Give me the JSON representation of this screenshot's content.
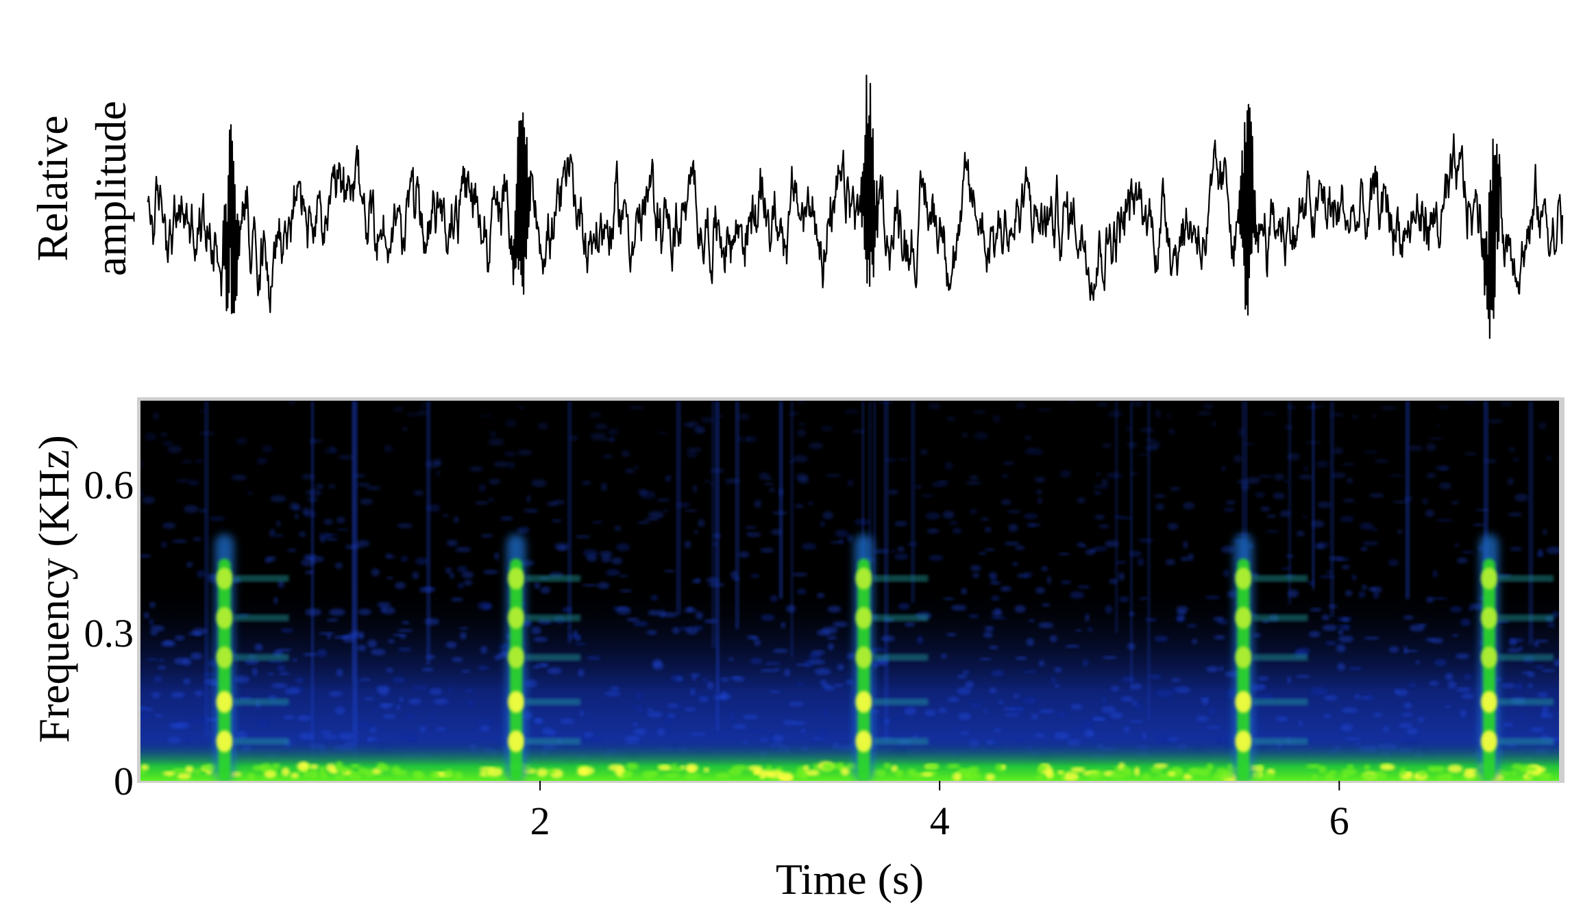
{
  "chart_data": [
    {
      "type": "line",
      "panel": "waveform",
      "ylabel_lines": [
        "Relative",
        "amplitude"
      ],
      "xlim": [
        0,
        7.1
      ],
      "ylim": [
        -1,
        1
      ],
      "baseline_noise": 0.16,
      "bursts": [
        {
          "t": 0.42,
          "amplitude": 0.75
        },
        {
          "t": 1.88,
          "amplitude": 0.77
        },
        {
          "t": 3.62,
          "amplitude": 0.83
        },
        {
          "t": 5.52,
          "amplitude": 0.8
        },
        {
          "t": 6.75,
          "amplitude": 0.77
        }
      ],
      "line_color": "#000000"
    },
    {
      "type": "heatmap",
      "panel": "spectrogram",
      "xlabel": "Time (s)",
      "ylabel": "Frequency (KHz)",
      "xlim": [
        0,
        7.1
      ],
      "ylim": [
        0,
        0.77
      ],
      "x_ticks": [
        2,
        4,
        6
      ],
      "x_tick_labels": [
        "2",
        "4",
        "6"
      ],
      "y_ticks": [
        0,
        0.3,
        0.6
      ],
      "y_tick_labels": [
        "0",
        "0.3",
        "0.6"
      ],
      "colormap": [
        "#000000",
        "#0a1a6e",
        "#1a3fc8",
        "#22a0a0",
        "#2fe01e",
        "#ffff40"
      ],
      "calls": [
        {
          "t": 0.42,
          "top_khz": 0.5,
          "harmonics_khz": [
            0.08,
            0.16,
            0.25,
            0.33,
            0.41
          ]
        },
        {
          "t": 1.88,
          "top_khz": 0.5,
          "harmonics_khz": [
            0.08,
            0.16,
            0.25,
            0.33,
            0.41
          ]
        },
        {
          "t": 3.62,
          "top_khz": 0.5,
          "harmonics_khz": [
            0.08,
            0.16,
            0.25,
            0.33,
            0.41
          ]
        },
        {
          "t": 5.52,
          "top_khz": 0.5,
          "harmonics_khz": [
            0.08,
            0.16,
            0.25,
            0.33,
            0.41
          ]
        },
        {
          "t": 6.75,
          "top_khz": 0.5,
          "harmonics_khz": [
            0.08,
            0.16,
            0.25,
            0.33,
            0.41
          ]
        }
      ]
    }
  ]
}
